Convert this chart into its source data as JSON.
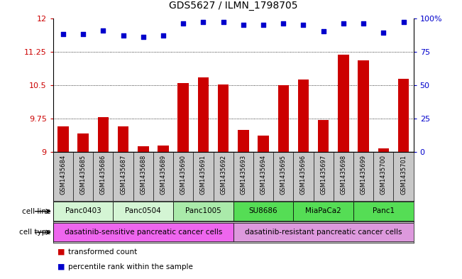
{
  "title": "GDS5627 / ILMN_1798705",
  "samples": [
    "GSM1435684",
    "GSM1435685",
    "GSM1435686",
    "GSM1435687",
    "GSM1435688",
    "GSM1435689",
    "GSM1435690",
    "GSM1435691",
    "GSM1435692",
    "GSM1435693",
    "GSM1435694",
    "GSM1435695",
    "GSM1435696",
    "GSM1435697",
    "GSM1435698",
    "GSM1435699",
    "GSM1435700",
    "GSM1435701"
  ],
  "transformed_count": [
    9.57,
    9.42,
    9.79,
    9.58,
    9.13,
    9.14,
    10.54,
    10.67,
    10.51,
    9.49,
    9.37,
    10.5,
    10.63,
    9.72,
    11.18,
    11.06,
    9.08,
    10.64
  ],
  "percentile_rank": [
    88,
    88,
    91,
    87,
    86,
    87,
    96,
    97,
    97,
    95,
    95,
    96,
    95,
    90,
    96,
    96,
    89,
    97
  ],
  "cell_lines": [
    {
      "name": "Panc0403",
      "start": 0,
      "end": 2,
      "color": "#d4f5d4"
    },
    {
      "name": "Panc0504",
      "start": 3,
      "end": 5,
      "color": "#d4f5d4"
    },
    {
      "name": "Panc1005",
      "start": 6,
      "end": 8,
      "color": "#aaeaaa"
    },
    {
      "name": "SU8686",
      "start": 9,
      "end": 11,
      "color": "#55dd55"
    },
    {
      "name": "MiaPaCa2",
      "start": 12,
      "end": 14,
      "color": "#55dd55"
    },
    {
      "name": "Panc1",
      "start": 15,
      "end": 17,
      "color": "#55dd55"
    }
  ],
  "cell_types": [
    {
      "name": "dasatinib-sensitive pancreatic cancer cells",
      "start": 0,
      "end": 8,
      "color": "#ee66ee"
    },
    {
      "name": "dasatinib-resistant pancreatic cancer cells",
      "start": 9,
      "end": 17,
      "color": "#dd99dd"
    }
  ],
  "ylim": [
    9.0,
    12.0
  ],
  "yticks": [
    9.0,
    9.75,
    10.5,
    11.25,
    12.0
  ],
  "ytick_labels": [
    "9",
    "9.75",
    "10.5",
    "11.25",
    "12"
  ],
  "right_yticks": [
    0,
    25,
    50,
    75,
    100
  ],
  "right_ytick_labels": [
    "0",
    "25",
    "50",
    "75",
    "100%"
  ],
  "bar_color": "#cc0000",
  "dot_color": "#0000cc",
  "bar_bottom": 9.0,
  "grid_color": "#555555",
  "sample_bg_color": "#c8c8c8",
  "left_label_color": "#555555"
}
